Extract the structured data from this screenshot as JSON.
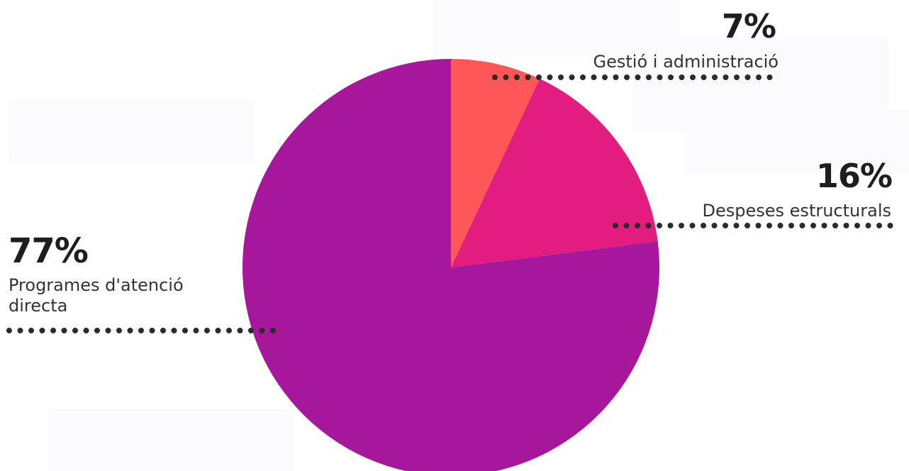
{
  "chart_data": {
    "type": "pie",
    "title": "",
    "slices": [
      {
        "label": "Gestió i administració",
        "value": 7,
        "value_label": "7%",
        "color": "#ff5757"
      },
      {
        "label": "Despeses estructurals",
        "value": 16,
        "value_label": "16%",
        "color": "#e31d7f"
      },
      {
        "label": "Programes d'atenció directa",
        "value": 77,
        "value_label": "77%",
        "color": "#a6179c"
      }
    ]
  },
  "colors": {
    "text_dark": "#1e1e1e",
    "text_label": "#333333",
    "leader_dots": "#2b2b2b"
  }
}
